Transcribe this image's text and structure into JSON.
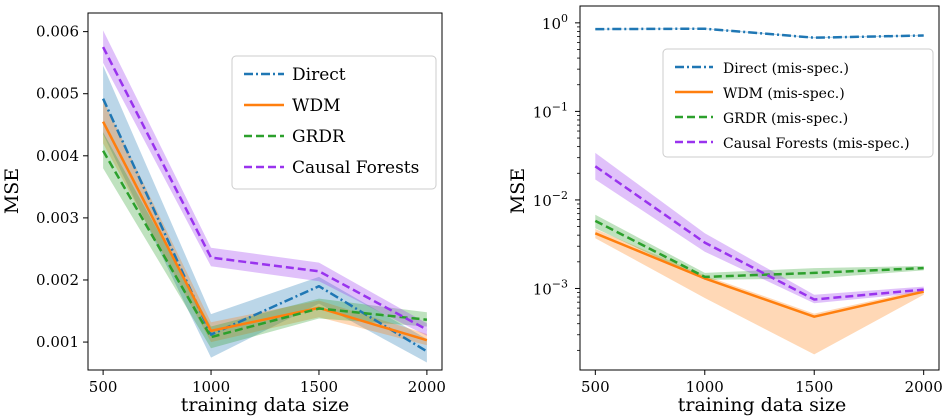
{
  "chart_data": [
    {
      "type": "line",
      "xlabel": "training data size",
      "ylabel": "MSE",
      "x": [
        500,
        1000,
        1500,
        2000
      ],
      "xticks": [
        "500",
        "1000",
        "1500",
        "2000"
      ],
      "yticks": [
        "0.001",
        "0.002",
        "0.003",
        "0.004",
        "0.005",
        "0.006"
      ],
      "ylim": [
        0.00055,
        0.0063
      ],
      "xlim": [
        430,
        2070
      ],
      "yscale": "linear",
      "legend_position": "upper right",
      "series": [
        {
          "name": "Direct",
          "color": "#1f77b4",
          "dash": "dashdot",
          "values": [
            0.00492,
            0.00112,
            0.0019,
            0.00085
          ],
          "lower": [
            0.00435,
            0.00075,
            0.00162,
            0.00067
          ],
          "upper": [
            0.00545,
            0.00145,
            0.00205,
            0.00105
          ]
        },
        {
          "name": "WDM",
          "color": "#ff7f0e",
          "dash": "solid",
          "values": [
            0.00455,
            0.00118,
            0.00155,
            0.00103
          ],
          "lower": [
            0.0042,
            0.001,
            0.0014,
            0.00095
          ],
          "upper": [
            0.0049,
            0.00132,
            0.00167,
            0.00113
          ]
        },
        {
          "name": "GRDR",
          "color": "#2ca02c",
          "dash": "dashed",
          "values": [
            0.00408,
            0.00108,
            0.00154,
            0.00136
          ],
          "lower": [
            0.0038,
            0.0009,
            0.00138,
            0.00125
          ],
          "upper": [
            0.00438,
            0.00125,
            0.0017,
            0.00148
          ]
        },
        {
          "name": "Causal Forests",
          "color": "#9933ee",
          "dash": "dashed",
          "values": [
            0.00575,
            0.00236,
            0.00214,
            0.0012
          ],
          "lower": [
            0.0055,
            0.00222,
            0.00198,
            0.0011
          ],
          "upper": [
            0.00602,
            0.00252,
            0.00228,
            0.0013
          ]
        }
      ]
    },
    {
      "type": "line",
      "xlabel": "training data size",
      "ylabel": "MSE",
      "x": [
        500,
        1000,
        1500,
        2000
      ],
      "xticks": [
        "500",
        "1000",
        "1500",
        "2000"
      ],
      "yticks": [
        {
          "value": 1,
          "exp": "0"
        },
        {
          "value": 0.1,
          "exp": "−1"
        },
        {
          "value": 0.01,
          "exp": "−2"
        },
        {
          "value": 0.001,
          "exp": "−3"
        }
      ],
      "ylim": [
        0.00012,
        1.55
      ],
      "xlim": [
        430,
        2070
      ],
      "yscale": "log",
      "legend_position": "upper right",
      "series": [
        {
          "name": "Direct (mis-spec.)",
          "color": "#1f77b4",
          "dash": "dashdot",
          "values": [
            0.85,
            0.86,
            0.68,
            0.72
          ],
          "lower": [
            0.84,
            0.85,
            0.67,
            0.71
          ],
          "upper": [
            0.86,
            0.87,
            0.69,
            0.73
          ]
        },
        {
          "name": "WDM (mis-spec.)",
          "color": "#ff7f0e",
          "dash": "solid",
          "values": [
            0.0042,
            0.0013,
            0.00048,
            0.00092
          ],
          "lower": [
            0.0037,
            0.00078,
            0.00018,
            0.00085
          ],
          "upper": [
            0.0047,
            0.0014,
            0.00052,
            0.00098
          ]
        },
        {
          "name": "GRDR (mis-spec.)",
          "color": "#2ca02c",
          "dash": "dashed",
          "values": [
            0.0058,
            0.00135,
            0.0015,
            0.0017
          ],
          "lower": [
            0.0048,
            0.00125,
            0.0013,
            0.0016
          ],
          "upper": [
            0.0068,
            0.0015,
            0.0017,
            0.0018
          ]
        },
        {
          "name": "Causal Forests (mis-spec.)",
          "color": "#9933ee",
          "dash": "dashed",
          "values": [
            0.024,
            0.0033,
            0.00075,
            0.00097
          ],
          "lower": [
            0.017,
            0.0026,
            0.00068,
            0.0009
          ],
          "upper": [
            0.034,
            0.0042,
            0.00085,
            0.00105
          ]
        }
      ]
    }
  ]
}
